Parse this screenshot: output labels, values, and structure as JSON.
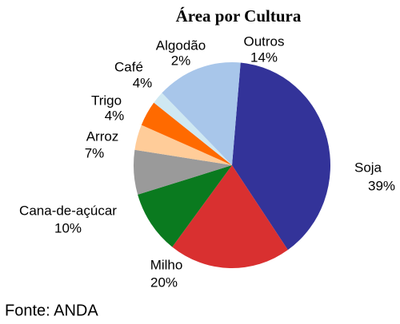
{
  "chart_data": {
    "type": "pie",
    "title": "Área por Cultura",
    "categories": [
      "Soja",
      "Milho",
      "Cana-de-açúcar",
      "Arroz",
      "Trigo",
      "Café",
      "Algodão",
      "Outros"
    ],
    "values": [
      39,
      20,
      10,
      7,
      4,
      4,
      2,
      14
    ],
    "value_labels": [
      "39%",
      "20%",
      "10%",
      "7%",
      "4%",
      "4%",
      "2%",
      "14%"
    ],
    "colors": [
      "#333399",
      "#d93030",
      "#0a7a1f",
      "#9a9a9a",
      "#ffcc99",
      "#ff6a00",
      "#cfe8f2",
      "#a8c6ea"
    ],
    "source": "Fonte: ANDA"
  }
}
